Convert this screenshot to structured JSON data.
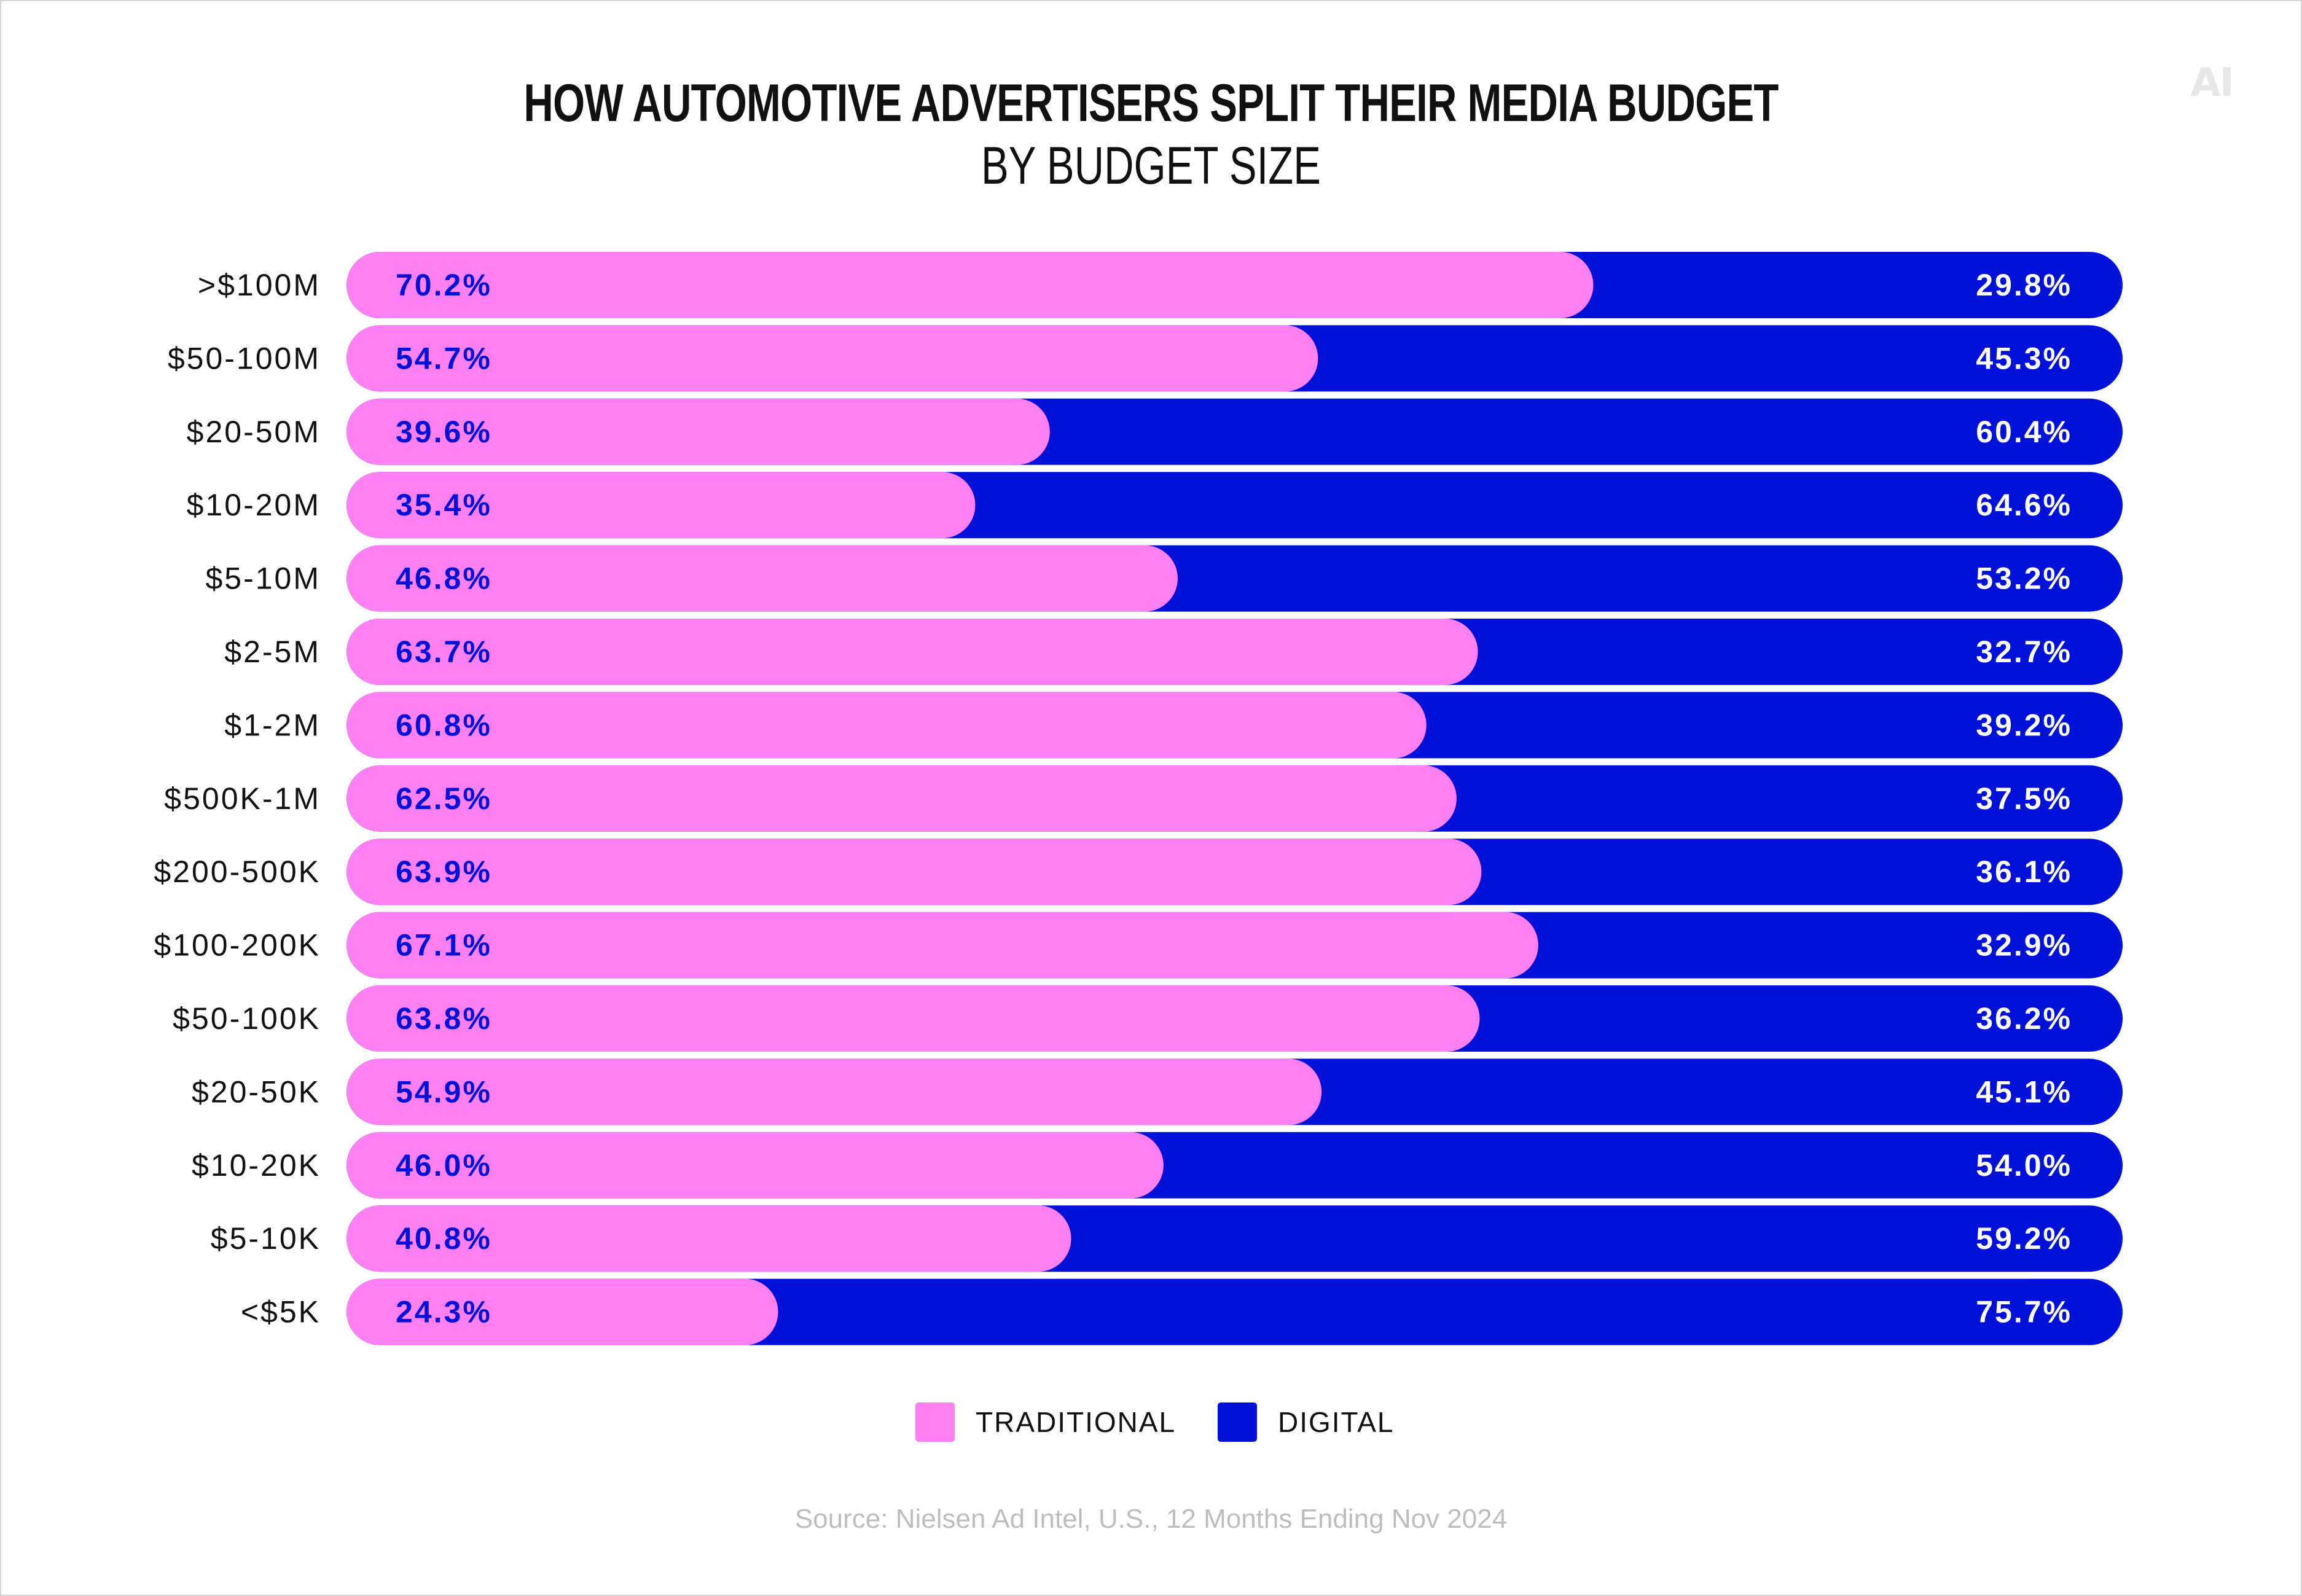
{
  "logo": "AI",
  "header": {
    "title": "HOW AUTOMOTIVE ADVERTISERS SPLIT THEIR MEDIA BUDGET",
    "subtitle": "BY BUDGET SIZE"
  },
  "colors": {
    "traditional": "#ff80f2",
    "digital": "#0011d9",
    "traditional_label": "#0011d9",
    "digital_label": "#ffffff"
  },
  "legend": {
    "traditional": "TRADITIONAL",
    "digital": "DIGITAL"
  },
  "source": "Source: Nielsen Ad Intel, U.S., 12 Months Ending Nov 2024",
  "chart_data": {
    "type": "bar",
    "orientation": "horizontal",
    "stacked": true,
    "title": "HOW AUTOMOTIVE ADVERTISERS SPLIT THEIR MEDIA BUDGET",
    "subtitle": "BY BUDGET SIZE",
    "xlabel": "",
    "ylabel": "",
    "xlim": [
      0,
      100
    ],
    "grid": false,
    "legend_position": "bottom-center",
    "categories": [
      ">$100M",
      "$50-100M",
      "$20-50M",
      "$10-20M",
      "$5-10M",
      "$2-5M",
      "$1-2M",
      "$500K-1M",
      "$200-500K",
      "$100-200K",
      "$50-100K",
      "$20-50K",
      "$10-20K",
      "$5-10K",
      "<$5K"
    ],
    "series": [
      {
        "name": "TRADITIONAL",
        "values": [
          70.2,
          54.7,
          39.6,
          35.4,
          46.8,
          63.7,
          60.8,
          62.5,
          63.9,
          67.1,
          63.8,
          54.9,
          46.0,
          40.8,
          24.3
        ],
        "labels": [
          "70.2%",
          "54.7%",
          "39.6%",
          "35.4%",
          "46.8%",
          "63.7%",
          "60.8%",
          "62.5%",
          "63.9%",
          "67.1%",
          "63.8%",
          "54.9%",
          "46.0%",
          "40.8%",
          "24.3%"
        ]
      },
      {
        "name": "DIGITAL",
        "values": [
          29.8,
          45.3,
          60.4,
          64.6,
          53.2,
          32.7,
          39.2,
          37.5,
          36.1,
          32.9,
          36.2,
          45.1,
          54.0,
          59.2,
          75.7
        ],
        "labels": [
          "29.8%",
          "45.3%",
          "60.4%",
          "64.6%",
          "53.2%",
          "32.7%",
          "39.2%",
          "37.5%",
          "36.1%",
          "32.9%",
          "36.2%",
          "45.1%",
          "54.0%",
          "59.2%",
          "75.7%"
        ]
      }
    ]
  }
}
